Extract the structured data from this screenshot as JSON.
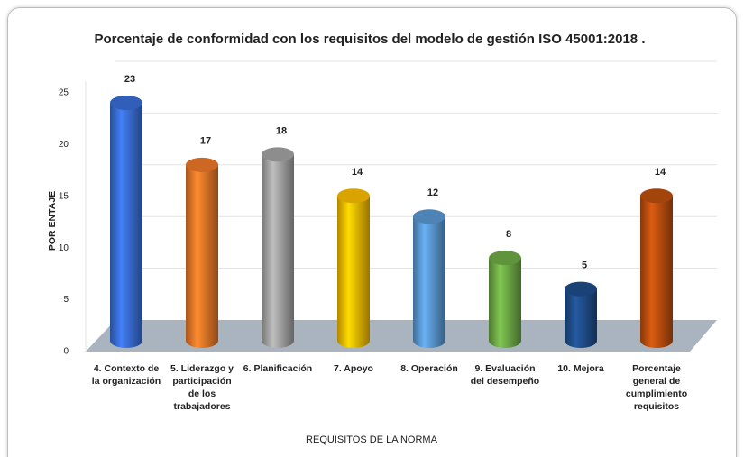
{
  "chart_data": {
    "type": "bar",
    "title": "Porcentaje de conformidad con los requisitos del modelo de gestión ISO 45001:2018 .",
    "x_label": "REQUISITOS DE LA NORMA",
    "y_label": "POR ENTAJE",
    "categories": [
      "4. Contexto de la organización",
      "5. Liderazgo y participación de los trabajadores",
      "6. Planificación",
      "7. Apoyo",
      "8. Operación",
      "9. Evaluación del desempeño",
      "10. Mejora",
      "Porcentaje general de cumplimiento requisitos"
    ],
    "values": [
      23,
      17,
      18,
      14,
      12,
      8,
      5,
      14
    ],
    "colors": [
      "#3a6fd8",
      "#f07a2a",
      "#a6a6a6",
      "#ffc000",
      "#5b9bd5",
      "#70ad47",
      "#1f4e8c",
      "#c0500f"
    ],
    "ylim": [
      0,
      25
    ],
    "yticks": [
      0,
      5,
      10,
      15,
      20,
      25
    ],
    "grid": true
  }
}
